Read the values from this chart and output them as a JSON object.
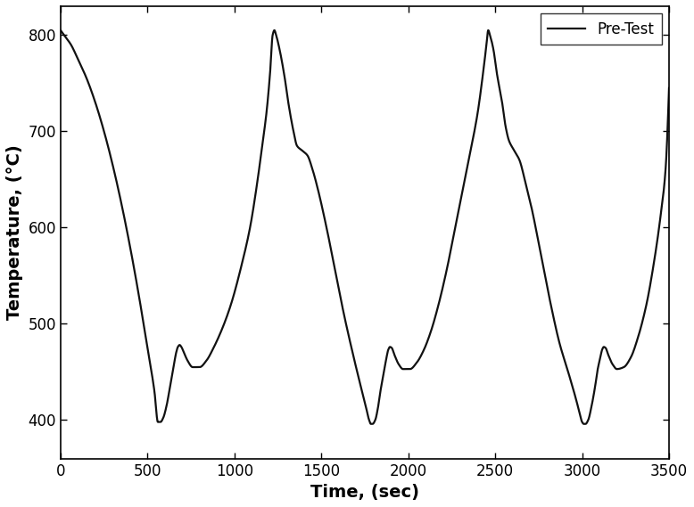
{
  "title": "",
  "xlabel": "Time, (sec)",
  "ylabel": "Temperature, (°C)",
  "legend_label": "Pre-Test",
  "line_color": "#111111",
  "line_width": 1.6,
  "xlim": [
    0,
    3500
  ],
  "ylim": [
    360,
    830
  ],
  "xticks": [
    0,
    500,
    1000,
    1500,
    2000,
    2500,
    3000,
    3500
  ],
  "yticks": [
    400,
    500,
    600,
    700,
    800
  ],
  "background_color": "#ffffff",
  "xlabel_fontsize": 14,
  "ylabel_fontsize": 14,
  "tick_fontsize": 12,
  "legend_fontsize": 12,
  "keypoints": [
    [
      0,
      805
    ],
    [
      20,
      800
    ],
    [
      60,
      790
    ],
    [
      100,
      775
    ],
    [
      150,
      755
    ],
    [
      200,
      730
    ],
    [
      250,
      700
    ],
    [
      300,
      665
    ],
    [
      350,
      625
    ],
    [
      400,
      580
    ],
    [
      450,
      530
    ],
    [
      500,
      475
    ],
    [
      540,
      430
    ],
    [
      560,
      398
    ],
    [
      575,
      398
    ],
    [
      590,
      402
    ],
    [
      610,
      415
    ],
    [
      630,
      435
    ],
    [
      650,
      455
    ],
    [
      665,
      470
    ],
    [
      675,
      476
    ],
    [
      685,
      478
    ],
    [
      695,
      476
    ],
    [
      710,
      470
    ],
    [
      730,
      462
    ],
    [
      760,
      455
    ],
    [
      800,
      455
    ],
    [
      840,
      462
    ],
    [
      880,
      475
    ],
    [
      930,
      495
    ],
    [
      980,
      520
    ],
    [
      1040,
      560
    ],
    [
      1090,
      600
    ],
    [
      1130,
      645
    ],
    [
      1160,
      685
    ],
    [
      1185,
      720
    ],
    [
      1205,
      760
    ],
    [
      1220,
      800
    ],
    [
      1230,
      805
    ],
    [
      1240,
      800
    ],
    [
      1260,
      785
    ],
    [
      1290,
      755
    ],
    [
      1310,
      730
    ],
    [
      1340,
      700
    ],
    [
      1360,
      685
    ],
    [
      1390,
      680
    ],
    [
      1420,
      675
    ],
    [
      1450,
      660
    ],
    [
      1480,
      640
    ],
    [
      1530,
      600
    ],
    [
      1580,
      555
    ],
    [
      1630,
      510
    ],
    [
      1680,
      470
    ],
    [
      1720,
      440
    ],
    [
      1755,
      415
    ],
    [
      1775,
      400
    ],
    [
      1785,
      396
    ],
    [
      1795,
      396
    ],
    [
      1810,
      400
    ],
    [
      1825,
      412
    ],
    [
      1840,
      430
    ],
    [
      1860,
      450
    ],
    [
      1875,
      465
    ],
    [
      1885,
      473
    ],
    [
      1895,
      476
    ],
    [
      1905,
      475
    ],
    [
      1920,
      468
    ],
    [
      1945,
      458
    ],
    [
      1970,
      453
    ],
    [
      2010,
      453
    ],
    [
      2050,
      460
    ],
    [
      2090,
      473
    ],
    [
      2130,
      492
    ],
    [
      2170,
      517
    ],
    [
      2220,
      555
    ],
    [
      2270,
      600
    ],
    [
      2320,
      645
    ],
    [
      2370,
      690
    ],
    [
      2400,
      720
    ],
    [
      2430,
      760
    ],
    [
      2450,
      790
    ],
    [
      2460,
      805
    ],
    [
      2470,
      800
    ],
    [
      2490,
      785
    ],
    [
      2510,
      760
    ],
    [
      2540,
      730
    ],
    [
      2560,
      705
    ],
    [
      2580,
      690
    ],
    [
      2610,
      680
    ],
    [
      2640,
      670
    ],
    [
      2670,
      650
    ],
    [
      2710,
      620
    ],
    [
      2760,
      575
    ],
    [
      2820,
      520
    ],
    [
      2870,
      480
    ],
    [
      2920,
      450
    ],
    [
      2960,
      425
    ],
    [
      2985,
      408
    ],
    [
      3000,
      398
    ],
    [
      3010,
      396
    ],
    [
      3020,
      396
    ],
    [
      3035,
      400
    ],
    [
      3055,
      415
    ],
    [
      3075,
      435
    ],
    [
      3090,
      453
    ],
    [
      3105,
      465
    ],
    [
      3115,
      473
    ],
    [
      3125,
      476
    ],
    [
      3135,
      475
    ],
    [
      3150,
      468
    ],
    [
      3175,
      458
    ],
    [
      3200,
      453
    ],
    [
      3240,
      455
    ],
    [
      3280,
      465
    ],
    [
      3320,
      485
    ],
    [
      3370,
      520
    ],
    [
      3410,
      560
    ],
    [
      3450,
      610
    ],
    [
      3480,
      660
    ],
    [
      3500,
      745
    ]
  ]
}
